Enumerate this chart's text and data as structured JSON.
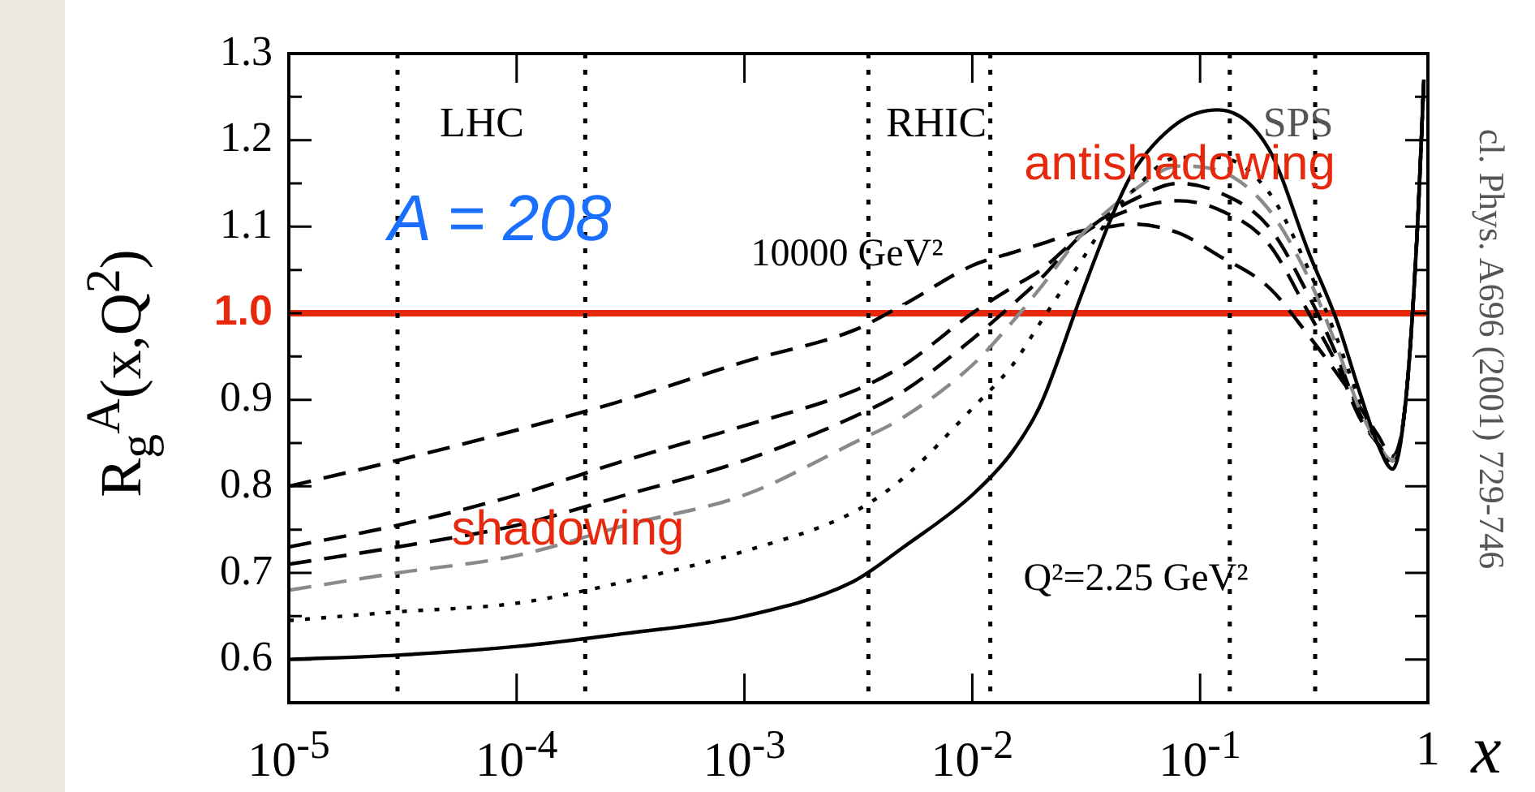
{
  "chart_data": {
    "type": "line",
    "xlabel": "x",
    "ylabel": "R$_{g}$$^{A}$(x,Q$^{2}$)",
    "log": "x",
    "grid": false,
    "legend": false,
    "marker": "none",
    "xlim": [
      1e-05,
      1
    ],
    "ylim": [
      0.55,
      1.3
    ],
    "xticks": [
      {
        "value": 1e-05,
        "label": "10$^{-5}$"
      },
      {
        "value": 0.0001,
        "label": "10$^{-4}$"
      },
      {
        "value": 0.001,
        "label": "10$^{-3}$"
      },
      {
        "value": 0.01,
        "label": "10$^{-2}$"
      },
      {
        "value": 0.1,
        "label": "10$^{-1}$"
      },
      {
        "value": 1,
        "label": "1"
      }
    ],
    "yticks": [
      {
        "value": 0.55,
        "label": null
      },
      {
        "value": 0.6,
        "label": "0.6"
      },
      {
        "value": 0.65,
        "label": null
      },
      {
        "value": 0.7,
        "label": "0.7"
      },
      {
        "value": 0.75,
        "label": null
      },
      {
        "value": 0.8,
        "label": "0.8"
      },
      {
        "value": 0.85,
        "label": null
      },
      {
        "value": 0.9,
        "label": "0.9"
      },
      {
        "value": 0.95,
        "label": null
      },
      {
        "value": 1,
        "label": null
      },
      {
        "value": 1.05,
        "label": null
      },
      {
        "value": 1.1,
        "label": "1.1"
      },
      {
        "value": 1.15,
        "label": null
      },
      {
        "value": 1.2,
        "label": "1.2"
      },
      {
        "value": 1.25,
        "label": null
      },
      {
        "value": 1.3,
        "label": "1.3"
      }
    ],
    "x": [
      1e-05,
      3e-05,
      0.0001,
      0.0003,
      0.001,
      0.003,
      0.005,
      0.01,
      0.015,
      0.02,
      0.03,
      0.04,
      0.05,
      0.08,
      0.12,
      0.2,
      0.3,
      0.4,
      0.5,
      0.6,
      0.7,
      0.8,
      0.9,
      0.96
    ],
    "series": [
      {
        "color": "#000000",
        "line_style": "solid",
        "values": [
          0.6,
          0.605,
          0.615,
          0.63,
          0.65,
          0.69,
          0.73,
          0.79,
          0.84,
          0.895,
          1.02,
          1.105,
          1.16,
          1.22,
          1.235,
          1.19,
          1.07,
          0.99,
          0.91,
          0.85,
          0.82,
          0.9,
          1.1,
          1.27
        ]
      },
      {
        "color": "#000000",
        "line_style": "dotted",
        "values": [
          0.645,
          0.655,
          0.665,
          0.69,
          0.725,
          0.77,
          0.81,
          0.89,
          0.94,
          0.99,
          1.06,
          1.11,
          1.14,
          1.18,
          1.18,
          1.14,
          1.05,
          0.97,
          0.9,
          0.85,
          0.825,
          0.9,
          1.1,
          1.27
        ]
      },
      {
        "color": "#8a8a8a",
        "line_style": "dashed",
        "values": [
          0.68,
          0.7,
          0.72,
          0.755,
          0.79,
          0.85,
          0.88,
          0.94,
          0.99,
          1.03,
          1.09,
          1.12,
          1.14,
          1.17,
          1.165,
          1.12,
          1.04,
          0.96,
          0.89,
          0.85,
          0.83,
          0.9,
          1.1,
          1.27
        ]
      },
      {
        "color": "#000000",
        "line_style": "dashed",
        "values": [
          0.71,
          0.73,
          0.755,
          0.79,
          0.83,
          0.88,
          0.91,
          0.97,
          1.01,
          1.04,
          1.09,
          1.115,
          1.13,
          1.15,
          1.14,
          1.1,
          1.02,
          0.95,
          0.885,
          0.85,
          0.83,
          0.9,
          1.1,
          1.27
        ]
      },
      {
        "color": "#000000",
        "line_style": "dashed",
        "values": [
          0.73,
          0.755,
          0.79,
          0.83,
          0.87,
          0.91,
          0.94,
          1.0,
          1.03,
          1.05,
          1.09,
          1.11,
          1.12,
          1.13,
          1.12,
          1.08,
          1.0,
          0.94,
          0.88,
          0.85,
          0.83,
          0.9,
          1.1,
          1.27
        ]
      },
      {
        "color": "#000000",
        "line_style": "dashed",
        "values": [
          0.8,
          0.83,
          0.865,
          0.9,
          0.944,
          0.98,
          1.01,
          1.055,
          1.07,
          1.08,
          1.095,
          1.1,
          1.103,
          1.093,
          1.067,
          1.03,
          0.974,
          0.93,
          0.893,
          0.86,
          0.835,
          0.9,
          1.1,
          1.27
        ]
      }
    ],
    "ref_lines": [
      {
        "axis": "y",
        "value": 1.0,
        "label": "1.0",
        "color": "#e8280c",
        "line_style": "solid"
      },
      {
        "axis": "x",
        "value": 3e-05,
        "color": "#000000",
        "line_style": "dotted"
      },
      {
        "axis": "x",
        "value": 0.0002,
        "color": "#000000",
        "line_style": "dotted"
      },
      {
        "axis": "x",
        "value": 0.0035,
        "color": "#000000",
        "line_style": "dotted"
      },
      {
        "axis": "x",
        "value": 0.012,
        "color": "#000000",
        "line_style": "dotted"
      },
      {
        "axis": "x",
        "value": 0.135,
        "color": "#000000",
        "line_style": "dotted"
      },
      {
        "axis": "x",
        "value": 0.32,
        "color": "#000000",
        "line_style": "dotted"
      }
    ],
    "annotations": [
      "LHC",
      "RHIC",
      "SPS",
      "A = 208",
      "10000 GeV²",
      "antishadowing",
      "shadowing",
      "Q²=2.25 GeV²",
      "cl. Phys. A696 (2001) 729-746"
    ]
  }
}
